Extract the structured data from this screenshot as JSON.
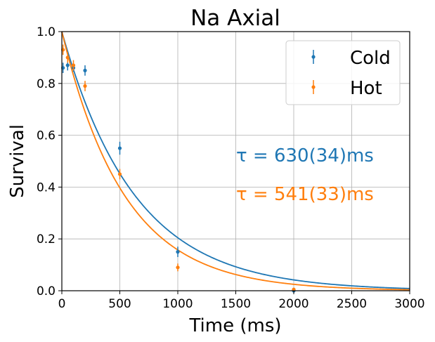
{
  "chart_data": {
    "type": "scatter",
    "title": "Na Axial",
    "xlabel": "Time (ms)",
    "ylabel": "Survival",
    "xlim": [
      0,
      3000
    ],
    "ylim": [
      0,
      1.0
    ],
    "xticks": [
      0,
      500,
      1000,
      1500,
      2000,
      2500,
      3000
    ],
    "yticks": [
      0.0,
      0.2,
      0.4,
      0.6,
      0.8,
      1.0
    ],
    "xtick_labels": [
      "0",
      "500",
      "1000",
      "1500",
      "2000",
      "2500",
      "3000"
    ],
    "ytick_labels": [
      "0.0",
      "0.2",
      "0.4",
      "0.6",
      "0.8",
      "1.0"
    ],
    "grid": true,
    "legend_position": "top-right",
    "series": [
      {
        "name": "Cold",
        "color": "#1f77b4",
        "x": [
          10,
          50,
          100,
          200,
          500,
          1000,
          2000
        ],
        "y": [
          0.86,
          0.87,
          0.86,
          0.85,
          0.55,
          0.15,
          0.0
        ],
        "yerr": [
          0.02,
          0.02,
          0.015,
          0.02,
          0.025,
          0.02,
          0.0
        ],
        "fit": {
          "model": "exponential",
          "tau": 630
        }
      },
      {
        "name": "Hot",
        "color": "#ff7f0e",
        "x": [
          10,
          50,
          100,
          200,
          500,
          1000,
          2000
        ],
        "y": [
          0.93,
          0.9,
          0.87,
          0.79,
          0.45,
          0.09,
          0.005
        ],
        "yerr": [
          0.02,
          0.02,
          0.02,
          0.02,
          0.02,
          0.015,
          0.005
        ],
        "fit": {
          "model": "exponential",
          "tau": 541
        }
      }
    ],
    "annotations": [
      {
        "text": "τ = 630(34)ms",
        "color": "#1f77b4"
      },
      {
        "text": "τ = 541(33)ms",
        "color": "#ff7f0e"
      }
    ]
  }
}
